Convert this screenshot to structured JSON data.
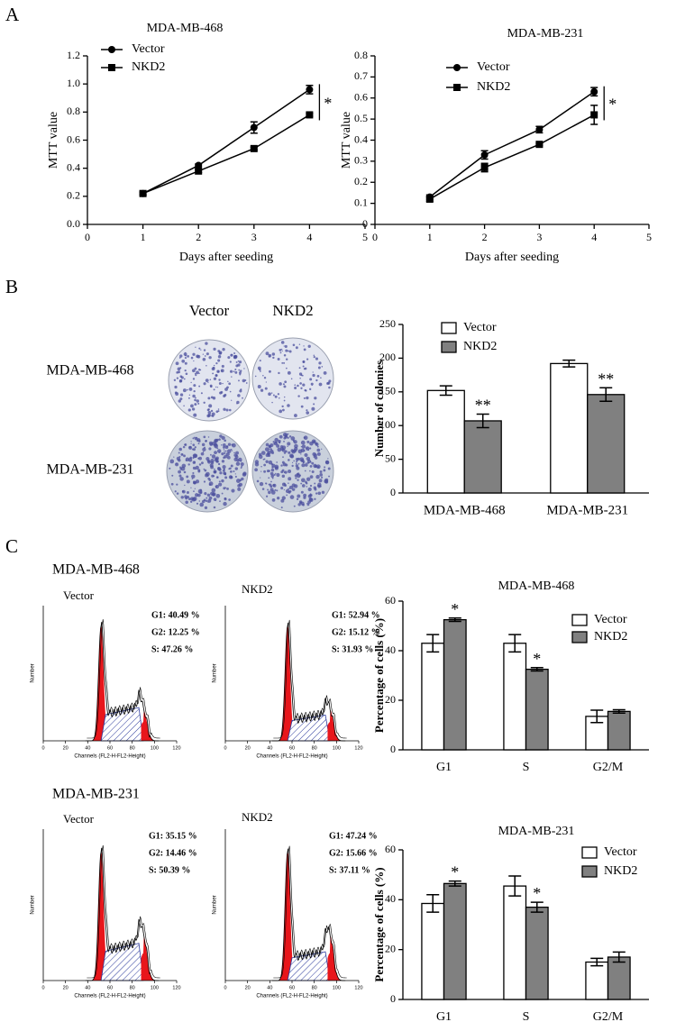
{
  "panel_labels": [
    "A",
    "B",
    "C"
  ],
  "chart_data": [
    {
      "type": "line",
      "title": "MDA-MB-468",
      "x_label": "Days after seeding",
      "y_label": "MTT value",
      "x": [
        1,
        2,
        3,
        4
      ],
      "xlim": [
        0,
        5
      ],
      "xticks": [
        0,
        1,
        2,
        3,
        4,
        5
      ],
      "ylim": [
        0,
        1.2
      ],
      "yticks": [
        {
          "value": 0,
          "label": "0.0"
        },
        0.2,
        0.4,
        0.6,
        0.8,
        {
          "value": 1,
          "label": "1.0"
        },
        1.2
      ],
      "series": [
        {
          "name": "Vector",
          "color": "#000000",
          "marker": "circle",
          "values": [
            0.22,
            0.42,
            0.69,
            0.96
          ],
          "errors": [
            0.01,
            0.01,
            0.04,
            0.03
          ]
        },
        {
          "name": "NKD2",
          "color": "#000000",
          "marker": "square",
          "values": [
            0.22,
            0.38,
            0.54,
            0.78
          ],
          "errors": [
            0.01,
            0.01,
            0.01,
            0.01
          ]
        }
      ],
      "annotations": [
        "*"
      ]
    },
    {
      "type": "line",
      "title": "MDA-MB-231",
      "x_label": "Days after seeding",
      "y_label": "MTT value",
      "x": [
        1,
        2,
        3,
        4
      ],
      "xlim": [
        0,
        5
      ],
      "xticks": [
        0,
        1,
        2,
        3,
        4,
        5
      ],
      "ylim": [
        0,
        0.8
      ],
      "yticks": [
        0,
        0.1,
        0.2,
        0.3,
        0.4,
        0.5,
        0.6,
        0.7,
        0.8
      ],
      "series": [
        {
          "name": "Vector",
          "color": "#000000",
          "marker": "circle",
          "values": [
            0.13,
            0.33,
            0.45,
            0.63
          ],
          "errors": [
            0.01,
            0.02,
            0.015,
            0.02
          ]
        },
        {
          "name": "NKD2",
          "color": "#000000",
          "marker": "square",
          "values": [
            0.12,
            0.27,
            0.38,
            0.52
          ],
          "errors": [
            0.01,
            0.02,
            0.005,
            0.045
          ]
        }
      ],
      "annotations": [
        "*"
      ]
    },
    {
      "type": "bar",
      "y_label": "Number of colonies",
      "categories": [
        "MDA-MB-468",
        "MDA-MB-231"
      ],
      "ylim": [
        0,
        250
      ],
      "yticks": [
        0,
        50,
        100,
        150,
        200,
        250
      ],
      "series": [
        {
          "name": "Vector",
          "color": "#ffffff",
          "values": [
            152,
            192
          ],
          "errors": [
            7,
            5
          ]
        },
        {
          "name": "NKD2",
          "color": "#808080",
          "values": [
            107,
            146
          ],
          "errors": [
            10,
            10
          ]
        }
      ],
      "annotations": [
        "**",
        "**"
      ]
    },
    {
      "type": "bar",
      "title": "MDA-MB-468",
      "y_label": "Percentage of cells (%)",
      "categories": [
        "G1",
        "S",
        "G2/M"
      ],
      "ylim": [
        0,
        60
      ],
      "yticks": [
        0,
        20,
        40,
        60
      ],
      "series": [
        {
          "name": "Vector",
          "color": "#ffffff",
          "values": [
            43,
            43,
            13.5
          ],
          "errors": [
            3.5,
            3.5,
            2.5
          ]
        },
        {
          "name": "NKD2",
          "color": "#808080",
          "values": [
            52.5,
            32.5,
            15.5
          ],
          "errors": [
            0.7,
            0.7,
            0.7
          ]
        }
      ],
      "annotations": [
        "*",
        "*"
      ]
    },
    {
      "type": "bar",
      "title": "MDA-MB-231",
      "y_label": "Percentage of cells (%)",
      "categories": [
        "G1",
        "S",
        "G2/M"
      ],
      "ylim": [
        0,
        60
      ],
      "yticks": [
        0,
        20,
        40,
        60
      ],
      "series": [
        {
          "name": "Vector",
          "color": "#ffffff",
          "values": [
            38.5,
            45.5,
            15
          ],
          "errors": [
            3.5,
            4,
            1.5
          ]
        },
        {
          "name": "NKD2",
          "color": "#808080",
          "values": [
            46.5,
            37,
            17
          ],
          "errors": [
            1,
            2,
            2
          ]
        }
      ],
      "annotations": [
        "*",
        "*"
      ]
    }
  ],
  "colony": {
    "columns": [
      "Vector",
      "NKD2"
    ],
    "rows": [
      "MDA-MB-468",
      "MDA-MB-231"
    ]
  },
  "flow_cytometry": {
    "x_label": "Channels (FL2-H-FL2-Height)",
    "y_label": "Number",
    "x_ticks": [
      "0",
      "20",
      "40",
      "60",
      "80",
      "100",
      "120"
    ],
    "groups": [
      {
        "title": "MDA-MB-468",
        "samples": [
          {
            "label": "Vector",
            "stats": [
              "G1: 40.49 %",
              "G2: 12.25 %",
              "S: 47.26 %"
            ]
          },
          {
            "label": "NKD2",
            "stats": [
              "G1: 52.94 %",
              "G2: 15.12 %",
              "S: 31.93 %"
            ]
          }
        ]
      },
      {
        "title": "MDA-MB-231",
        "samples": [
          {
            "label": "Vector",
            "stats": [
              "G1: 35.15 %",
              "G2: 14.46 %",
              "S: 50.39 %"
            ]
          },
          {
            "label": "NKD2",
            "stats": [
              "G1: 47.24 %",
              "G2: 15.66 %",
              "S: 37.11 %"
            ]
          }
        ]
      }
    ]
  }
}
